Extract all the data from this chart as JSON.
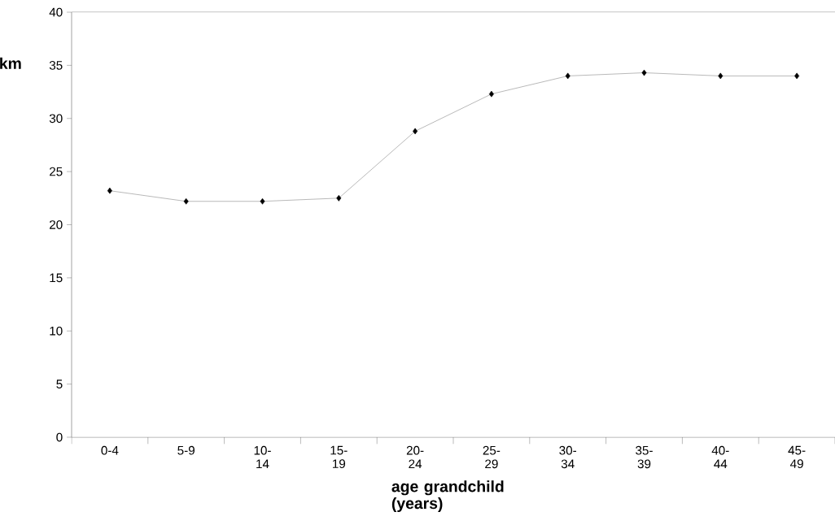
{
  "chart_data": {
    "type": "line",
    "xlabel": "age grandchild (years)",
    "ylabel": "km",
    "categories": [
      "0-4",
      "5-9",
      "10-14",
      "15-19",
      "20-24",
      "25-29",
      "30-34",
      "35-39",
      "40-44",
      "45-49"
    ],
    "series": [
      {
        "color": "#808080",
        "values": [
          23.2,
          22.2,
          22.2,
          22.5,
          28.8,
          32.3,
          34.0,
          34.3,
          34.0,
          34.0
        ]
      }
    ],
    "ylim": [
      0,
      40
    ],
    "yticks": [
      0,
      5,
      10,
      15,
      20,
      25,
      30,
      35,
      40
    ],
    "marker": "diamond",
    "line_style": "solid",
    "grid": false
  }
}
